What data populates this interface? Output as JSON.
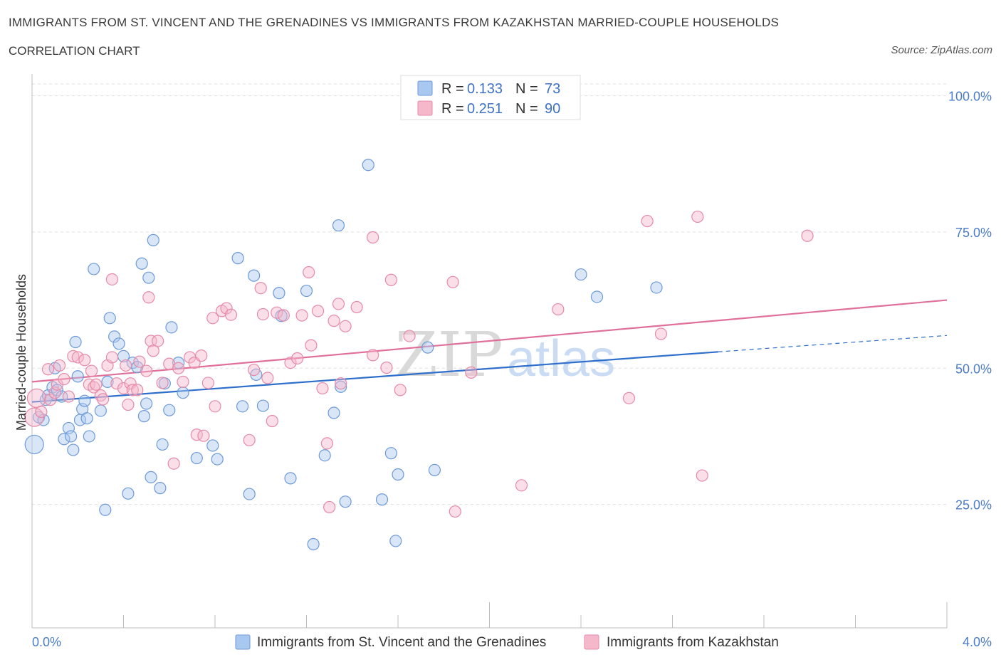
{
  "header": {
    "title": "IMMIGRANTS FROM ST. VINCENT AND THE GRENADINES VS IMMIGRANTS FROM KAZAKHSTAN MARRIED-COUPLE HOUSEHOLDS",
    "subtitle": "CORRELATION CHART",
    "source": "Source: ZipAtlas.com"
  },
  "watermark": {
    "zip": "ZIP",
    "atlas": "atlas"
  },
  "colors": {
    "blue_fill": "#a9c8f0",
    "blue_stroke": "#6e9ad8",
    "blue_line": "#2e6fcc",
    "pink_fill": "#f5b8cb",
    "pink_stroke": "#e68aa8",
    "pink_line": "#e0709a",
    "grid": "#e0e0e0",
    "axis_text": "#4a7cc9"
  },
  "legend": {
    "rows": [
      {
        "r_label": "R = ",
        "r_value": "0.133",
        "n_label": "N = ",
        "n_value": "73"
      },
      {
        "r_label": "R = ",
        "r_value": "0.251",
        "n_label": "N = ",
        "n_value": "90"
      }
    ]
  },
  "chart_data": {
    "type": "scatter",
    "xlabel": "",
    "ylabel": "Married-couple Households",
    "xlim": [
      0,
      4.0
    ],
    "ylim": [
      0,
      100
    ],
    "x_tick_labels": [
      "0.0%",
      "4.0%"
    ],
    "y_ticks": [
      25,
      50,
      75,
      100
    ],
    "y_tick_labels": [
      "25.0%",
      "50.0%",
      "75.0%",
      "100.0%"
    ],
    "grid": true,
    "legend_position": "top-center",
    "series": [
      {
        "name": "Immigrants from St. Vincent and the Grenadines",
        "color": "blue",
        "r": 0.133,
        "n": 73,
        "trend": {
          "x0": 0.0,
          "y0": 43.8,
          "x1": 3.0,
          "y1": 53.0,
          "dash_to_x": 4.0,
          "dash_y": 56.0
        },
        "points": [
          [
            0.01,
            36.0
          ],
          [
            0.03,
            41.0
          ],
          [
            0.05,
            40.5
          ],
          [
            0.06,
            44.2
          ],
          [
            0.07,
            45.0
          ],
          [
            0.09,
            46.5
          ],
          [
            0.1,
            50.0
          ],
          [
            0.11,
            46.0
          ],
          [
            0.14,
            37.0
          ],
          [
            0.16,
            39.0
          ],
          [
            0.17,
            37.5
          ],
          [
            0.18,
            35.0
          ],
          [
            0.19,
            54.8
          ],
          [
            0.2,
            48.5
          ],
          [
            0.21,
            40.5
          ],
          [
            0.22,
            42.5
          ],
          [
            0.23,
            44.0
          ],
          [
            0.24,
            40.8
          ],
          [
            0.27,
            68.2
          ],
          [
            0.3,
            42.2
          ],
          [
            0.32,
            24.0
          ],
          [
            0.34,
            59.2
          ],
          [
            0.36,
            55.8
          ],
          [
            0.38,
            54.5
          ],
          [
            0.4,
            52.2
          ],
          [
            0.42,
            27.0
          ],
          [
            0.44,
            51.0
          ],
          [
            0.48,
            69.2
          ],
          [
            0.49,
            41.2
          ],
          [
            0.5,
            43.5
          ],
          [
            0.51,
            66.6
          ],
          [
            0.52,
            30.0
          ],
          [
            0.53,
            73.5
          ],
          [
            0.56,
            28.0
          ],
          [
            0.57,
            36.0
          ],
          [
            0.58,
            47.2
          ],
          [
            0.6,
            42.3
          ],
          [
            0.61,
            57.5
          ],
          [
            0.64,
            51.0
          ],
          [
            0.66,
            45.5
          ],
          [
            0.72,
            33.5
          ],
          [
            0.79,
            35.8
          ],
          [
            0.81,
            33.3
          ],
          [
            0.9,
            70.2
          ],
          [
            0.92,
            43.0
          ],
          [
            0.95,
            26.9
          ],
          [
            0.98,
            48.8
          ],
          [
            0.97,
            67.0
          ],
          [
            1.01,
            43.1
          ],
          [
            1.08,
            63.8
          ],
          [
            1.09,
            59.6
          ],
          [
            1.13,
            29.8
          ],
          [
            1.2,
            64.2
          ],
          [
            1.23,
            17.7
          ],
          [
            1.28,
            34.0
          ],
          [
            1.32,
            41.8
          ],
          [
            1.34,
            76.2
          ],
          [
            1.35,
            46.6
          ],
          [
            1.37,
            25.5
          ],
          [
            1.47,
            87.3
          ],
          [
            1.53,
            25.9
          ],
          [
            1.57,
            34.4
          ],
          [
            1.59,
            18.3
          ],
          [
            1.6,
            30.5
          ],
          [
            1.73,
            53.8
          ],
          [
            1.76,
            31.3
          ],
          [
            2.4,
            67.2
          ],
          [
            2.47,
            63.1
          ],
          [
            2.73,
            64.8
          ],
          [
            0.13,
            44.8
          ],
          [
            0.25,
            37.5
          ],
          [
            0.33,
            47.5
          ],
          [
            0.46,
            50.2
          ]
        ]
      },
      {
        "name": "Immigrants from Kazakhstan",
        "color": "pink",
        "r": 0.251,
        "n": 90,
        "trend": {
          "x0": 0.0,
          "y0": 47.5,
          "x1": 4.0,
          "y1": 62.5
        },
        "points": [
          [
            0.01,
            41.0
          ],
          [
            0.02,
            44.5
          ],
          [
            0.04,
            42.0
          ],
          [
            0.07,
            49.8
          ],
          [
            0.08,
            44.2
          ],
          [
            0.1,
            45.5
          ],
          [
            0.11,
            47.0
          ],
          [
            0.12,
            50.5
          ],
          [
            0.14,
            48.0
          ],
          [
            0.16,
            44.8
          ],
          [
            0.18,
            52.2
          ],
          [
            0.2,
            52.0
          ],
          [
            0.23,
            51.5
          ],
          [
            0.25,
            47.0
          ],
          [
            0.26,
            49.5
          ],
          [
            0.27,
            46.5
          ],
          [
            0.28,
            47.0
          ],
          [
            0.3,
            45.0
          ],
          [
            0.31,
            44.3
          ],
          [
            0.33,
            50.5
          ],
          [
            0.35,
            52.0
          ],
          [
            0.35,
            66.3
          ],
          [
            0.37,
            47.2
          ],
          [
            0.4,
            46.3
          ],
          [
            0.41,
            50.5
          ],
          [
            0.42,
            43.3
          ],
          [
            0.43,
            47.2
          ],
          [
            0.44,
            46.0
          ],
          [
            0.46,
            46.0
          ],
          [
            0.47,
            51.2
          ],
          [
            0.5,
            49.5
          ],
          [
            0.51,
            63.0
          ],
          [
            0.52,
            55.0
          ],
          [
            0.53,
            53.2
          ],
          [
            0.55,
            55.0
          ],
          [
            0.57,
            47.3
          ],
          [
            0.6,
            50.8
          ],
          [
            0.62,
            32.5
          ],
          [
            0.64,
            50.0
          ],
          [
            0.66,
            47.5
          ],
          [
            0.69,
            52.0
          ],
          [
            0.71,
            51.0
          ],
          [
            0.72,
            37.8
          ],
          [
            0.74,
            52.3
          ],
          [
            0.75,
            37.6
          ],
          [
            0.77,
            47.3
          ],
          [
            0.79,
            59.2
          ],
          [
            0.8,
            43.0
          ],
          [
            0.83,
            60.5
          ],
          [
            0.85,
            61.0
          ],
          [
            0.87,
            59.8
          ],
          [
            0.95,
            36.8
          ],
          [
            0.97,
            49.7
          ],
          [
            1.0,
            64.7
          ],
          [
            1.01,
            59.9
          ],
          [
            1.03,
            48.2
          ],
          [
            1.05,
            40.3
          ],
          [
            1.07,
            60.2
          ],
          [
            1.1,
            59.7
          ],
          [
            1.13,
            51.0
          ],
          [
            1.16,
            51.8
          ],
          [
            1.18,
            59.7
          ],
          [
            1.21,
            67.6
          ],
          [
            1.22,
            54.2
          ],
          [
            1.25,
            60.5
          ],
          [
            1.27,
            46.3
          ],
          [
            1.29,
            36.2
          ],
          [
            1.3,
            24.5
          ],
          [
            1.32,
            58.7
          ],
          [
            1.34,
            61.8
          ],
          [
            1.35,
            47.2
          ],
          [
            1.37,
            57.7
          ],
          [
            1.42,
            61.2
          ],
          [
            1.49,
            52.4
          ],
          [
            1.49,
            74.0
          ],
          [
            1.55,
            50.1
          ],
          [
            1.57,
            66.2
          ],
          [
            1.61,
            46.0
          ],
          [
            1.65,
            55.9
          ],
          [
            1.84,
            65.8
          ],
          [
            1.85,
            23.7
          ],
          [
            1.92,
            49.2
          ],
          [
            2.14,
            28.5
          ],
          [
            2.3,
            60.8
          ],
          [
            2.61,
            44.5
          ],
          [
            2.69,
            77.0
          ],
          [
            2.75,
            56.3
          ],
          [
            2.91,
            77.8
          ],
          [
            2.93,
            30.3
          ],
          [
            3.39,
            74.3
          ]
        ]
      }
    ]
  }
}
